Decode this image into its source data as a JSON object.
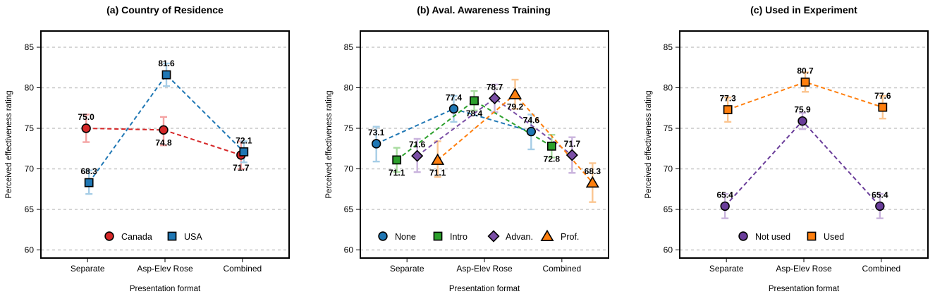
{
  "chart_data": [
    {
      "type": "line",
      "title": "(a) Country of Residence",
      "xlabel": "Presentation format",
      "ylabel": "Perceived effectiveness rating",
      "categories": [
        "Separate",
        "Asp-Elev Rose",
        "Combined"
      ],
      "ylim": [
        59,
        87
      ],
      "yticks": [
        60,
        65,
        70,
        75,
        80,
        85
      ],
      "ytick_labels": [
        "60",
        "65",
        "70",
        "75",
        "80",
        "85"
      ],
      "grid": true,
      "legend_position": "bottom",
      "series": [
        {
          "name": "Canada",
          "marker": "circle",
          "color": "#d62728",
          "errcolor": "#f4a3a3",
          "values": [
            75.0,
            74.8,
            71.7
          ],
          "labels": [
            "75.0",
            "74.8",
            "71.7"
          ],
          "err_low": [
            73.3,
            72.9,
            70.0
          ],
          "err_high": [
            76.7,
            76.4,
            73.4
          ],
          "label_pos": [
            "above",
            "below",
            "below"
          ]
        },
        {
          "name": "USA",
          "marker": "square",
          "color": "#1f77b4",
          "errcolor": "#a6cde6",
          "values": [
            68.3,
            81.6,
            72.1
          ],
          "labels": [
            "68.3",
            "81.6",
            "72.1"
          ],
          "err_low": [
            66.9,
            80.2,
            70.8
          ],
          "err_high": [
            69.8,
            83.0,
            73.4
          ],
          "label_pos": [
            "above",
            "above",
            "above"
          ]
        }
      ]
    },
    {
      "type": "line",
      "title": "(b) Aval. Awareness Training",
      "xlabel": "Presentation format",
      "ylabel": "Perceived effectiveness rating",
      "categories": [
        "Separate",
        "Asp-Elev Rose",
        "Combined"
      ],
      "ylim": [
        59,
        87
      ],
      "yticks": [
        60,
        65,
        70,
        75,
        80,
        85
      ],
      "ytick_labels": [
        "60",
        "65",
        "70",
        "75",
        "80",
        "85"
      ],
      "grid": true,
      "legend_position": "bottom",
      "series": [
        {
          "name": "None",
          "marker": "circle",
          "color": "#1f77b4",
          "errcolor": "#a6cde6",
          "values": [
            73.1,
            77.4,
            74.6
          ],
          "labels": [
            "73.1",
            "77.4",
            "74.6"
          ],
          "err_low": [
            70.9,
            75.8,
            72.4
          ],
          "err_high": [
            75.2,
            79.0,
            76.7
          ],
          "label_pos": [
            "above",
            "above",
            "above"
          ]
        },
        {
          "name": "Intro",
          "marker": "square",
          "color": "#2ca02c",
          "errcolor": "#a8dca0",
          "values": [
            71.1,
            78.4,
            72.8
          ],
          "labels": [
            "71.1",
            "78.4",
            "72.8"
          ],
          "err_low": [
            69.6,
            77.2,
            71.4
          ],
          "err_high": [
            72.6,
            79.6,
            74.2
          ],
          "label_pos": [
            "below",
            "below",
            "below"
          ]
        },
        {
          "name": "Advan.",
          "marker": "diamond",
          "color": "#7b4fa6",
          "errcolor": "#c9b3dd",
          "values": [
            71.6,
            78.7,
            71.7
          ],
          "labels": [
            "71.6",
            "78.7",
            "71.7"
          ],
          "err_low": [
            69.6,
            77.0,
            69.5
          ],
          "err_high": [
            73.7,
            80.4,
            73.9
          ],
          "label_pos": [
            "above",
            "above",
            "above"
          ]
        },
        {
          "name": "Prof.",
          "marker": "triangle",
          "color": "#ff7f0e",
          "errcolor": "#fbc590",
          "values": [
            71.1,
            79.2,
            68.3
          ],
          "labels": [
            "71.1",
            "79.2",
            "68.3"
          ],
          "err_low": [
            69.0,
            77.4,
            65.9
          ],
          "err_high": [
            73.4,
            81.0,
            70.7
          ],
          "label_pos": [
            "below",
            "below",
            "above"
          ]
        }
      ]
    },
    {
      "type": "line",
      "title": "(c) Used in Experiment",
      "xlabel": "Presentation format",
      "ylabel": "Perceived effectiveness rating",
      "categories": [
        "Separate",
        "Asp-Elev Rose",
        "Combined"
      ],
      "ylim": [
        59,
        87
      ],
      "yticks": [
        60,
        65,
        70,
        75,
        80,
        85
      ],
      "ytick_labels": [
        "60",
        "65",
        "70",
        "75",
        "80",
        "85"
      ],
      "grid": true,
      "legend_position": "bottom",
      "series": [
        {
          "name": "Not used",
          "marker": "circle",
          "color": "#6a3d9a",
          "errcolor": "#c9b3dd",
          "values": [
            65.4,
            75.9,
            65.4
          ],
          "labels": [
            "65.4",
            "75.9",
            "65.4"
          ],
          "err_low": [
            63.9,
            74.9,
            63.9
          ],
          "err_high": [
            66.9,
            76.9,
            66.9
          ],
          "label_pos": [
            "above",
            "above",
            "above"
          ]
        },
        {
          "name": "Used",
          "marker": "square",
          "color": "#ff7f0e",
          "errcolor": "#fbc590",
          "values": [
            77.3,
            80.7,
            77.6
          ],
          "labels": [
            "77.3",
            "80.7",
            "77.6"
          ],
          "err_low": [
            75.8,
            79.5,
            76.2
          ],
          "err_high": [
            78.8,
            81.9,
            79.0
          ],
          "label_pos": [
            "above",
            "above",
            "above"
          ]
        }
      ]
    }
  ]
}
